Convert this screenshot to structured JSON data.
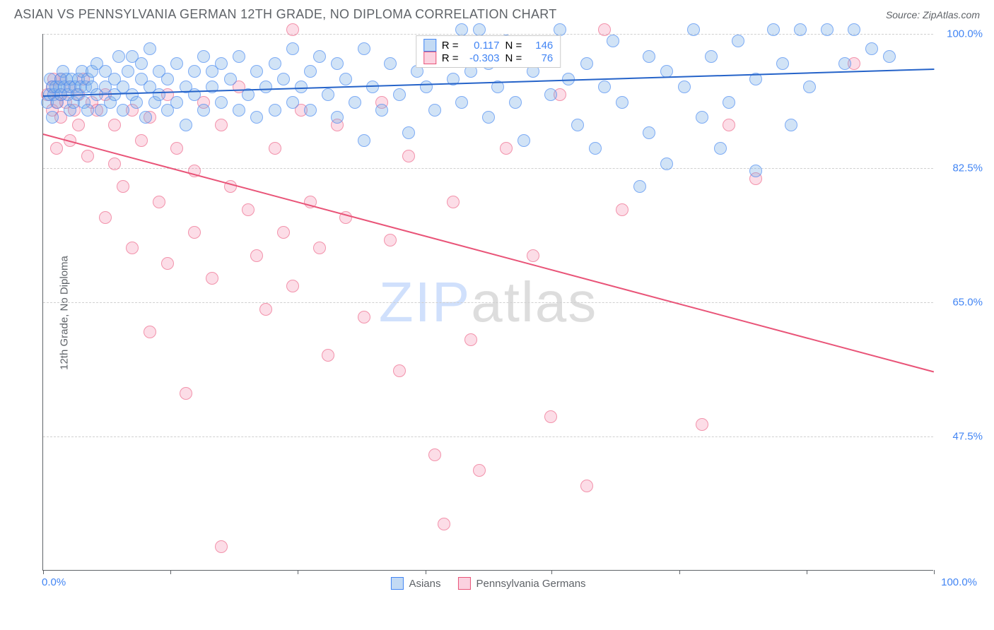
{
  "header": {
    "title": "ASIAN VS PENNSYLVANIA GERMAN 12TH GRADE, NO DIPLOMA CORRELATION CHART",
    "source": "Source: ZipAtlas.com"
  },
  "ylabel": "12th Grade, No Diploma",
  "watermark": {
    "zip": "ZIP",
    "atlas": "atlas"
  },
  "xaxis": {
    "min": 0,
    "max": 100,
    "min_label": "0.0%",
    "max_label": "100.0%",
    "ticks_pct": [
      0,
      14.3,
      28.6,
      42.9,
      57.1,
      71.4,
      85.7,
      100
    ]
  },
  "yaxis": {
    "min": 30,
    "max": 100,
    "gridlines": [
      47.5,
      65.0,
      82.5,
      100.0
    ],
    "labels": [
      "47.5%",
      "65.0%",
      "82.5%",
      "100.0%"
    ]
  },
  "legend_top": {
    "rows": [
      {
        "swatch": "a",
        "r_label": "R =",
        "r": "0.117",
        "n_label": "N =",
        "n": "146"
      },
      {
        "swatch": "b",
        "r_label": "R =",
        "r": "-0.303",
        "n_label": "N =",
        "n": "76"
      }
    ]
  },
  "legend_bottom": {
    "items": [
      {
        "swatch": "a",
        "label": "Asians"
      },
      {
        "swatch": "b",
        "label": "Pennsylvania Germans"
      }
    ]
  },
  "trend": {
    "a": {
      "color": "#2563c9",
      "y_at_x0": 92.0,
      "y_at_x100": 95.5
    },
    "b": {
      "color": "#e95478",
      "y_at_x0": 87.0,
      "y_at_x100": 56.0
    }
  },
  "series": {
    "a": {
      "color_fill": "rgba(122,174,230,0.35)",
      "color_stroke": "rgba(66,133,244,0.6)",
      "points": [
        [
          0.5,
          91
        ],
        [
          0.7,
          92
        ],
        [
          0.8,
          94
        ],
        [
          1,
          93
        ],
        [
          1,
          89
        ],
        [
          1.2,
          92
        ],
        [
          1.4,
          93
        ],
        [
          1.6,
          91
        ],
        [
          1.8,
          93
        ],
        [
          2,
          92
        ],
        [
          2,
          94
        ],
        [
          2.2,
          95
        ],
        [
          2.4,
          93
        ],
        [
          2.6,
          94
        ],
        [
          2.8,
          92
        ],
        [
          3,
          93
        ],
        [
          3,
          90
        ],
        [
          3.2,
          94
        ],
        [
          3.4,
          91
        ],
        [
          3.6,
          93
        ],
        [
          3.8,
          92
        ],
        [
          4,
          94
        ],
        [
          4.2,
          93
        ],
        [
          4.4,
          95
        ],
        [
          4.6,
          91
        ],
        [
          4.8,
          93
        ],
        [
          5,
          90
        ],
        [
          5,
          94
        ],
        [
          5.5,
          93
        ],
        [
          5.5,
          95
        ],
        [
          6,
          92
        ],
        [
          6,
          96
        ],
        [
          6.5,
          90
        ],
        [
          7,
          93
        ],
        [
          7,
          95
        ],
        [
          7.5,
          91
        ],
        [
          8,
          94
        ],
        [
          8,
          92
        ],
        [
          8.5,
          97
        ],
        [
          9,
          90
        ],
        [
          9,
          93
        ],
        [
          9.5,
          95
        ],
        [
          10,
          92
        ],
        [
          10,
          97
        ],
        [
          10.5,
          91
        ],
        [
          11,
          94
        ],
        [
          11,
          96
        ],
        [
          11.5,
          89
        ],
        [
          12,
          93
        ],
        [
          12,
          98
        ],
        [
          12.5,
          91
        ],
        [
          13,
          95
        ],
        [
          13,
          92
        ],
        [
          14,
          94
        ],
        [
          14,
          90
        ],
        [
          15,
          96
        ],
        [
          15,
          91
        ],
        [
          16,
          93
        ],
        [
          16,
          88
        ],
        [
          17,
          95
        ],
        [
          17,
          92
        ],
        [
          18,
          90
        ],
        [
          18,
          97
        ],
        [
          19,
          93
        ],
        [
          19,
          95
        ],
        [
          20,
          91
        ],
        [
          20,
          96
        ],
        [
          21,
          94
        ],
        [
          22,
          90
        ],
        [
          22,
          97
        ],
        [
          23,
          92
        ],
        [
          24,
          95
        ],
        [
          24,
          89
        ],
        [
          25,
          93
        ],
        [
          26,
          96
        ],
        [
          26,
          90
        ],
        [
          27,
          94
        ],
        [
          28,
          91
        ],
        [
          28,
          98
        ],
        [
          29,
          93
        ],
        [
          30,
          90
        ],
        [
          30,
          95
        ],
        [
          31,
          97
        ],
        [
          32,
          92
        ],
        [
          33,
          89
        ],
        [
          33,
          96
        ],
        [
          34,
          94
        ],
        [
          35,
          91
        ],
        [
          36,
          98
        ],
        [
          36,
          86
        ],
        [
          37,
          93
        ],
        [
          38,
          90
        ],
        [
          39,
          96
        ],
        [
          40,
          92
        ],
        [
          41,
          87
        ],
        [
          42,
          95
        ],
        [
          43,
          93
        ],
        [
          44,
          90
        ],
        [
          45,
          97
        ],
        [
          46,
          94
        ],
        [
          47,
          100.5
        ],
        [
          47,
          91
        ],
        [
          48,
          95
        ],
        [
          49,
          100.5
        ],
        [
          50,
          89
        ],
        [
          50,
          96
        ],
        [
          51,
          93
        ],
        [
          52,
          99
        ],
        [
          53,
          91
        ],
        [
          54,
          86
        ],
        [
          55,
          95
        ],
        [
          56,
          97
        ],
        [
          57,
          92
        ],
        [
          58,
          100.5
        ],
        [
          59,
          94
        ],
        [
          60,
          88
        ],
        [
          61,
          96
        ],
        [
          62,
          85
        ],
        [
          63,
          93
        ],
        [
          64,
          99
        ],
        [
          65,
          91
        ],
        [
          67,
          80
        ],
        [
          68,
          97
        ],
        [
          68,
          87
        ],
        [
          70,
          95
        ],
        [
          70,
          83
        ],
        [
          72,
          93
        ],
        [
          73,
          100.5
        ],
        [
          74,
          89
        ],
        [
          75,
          97
        ],
        [
          76,
          85
        ],
        [
          77,
          91
        ],
        [
          78,
          99
        ],
        [
          80,
          94
        ],
        [
          80,
          82
        ],
        [
          82,
          100.5
        ],
        [
          83,
          96
        ],
        [
          84,
          88
        ],
        [
          85,
          100.5
        ],
        [
          86,
          93
        ],
        [
          88,
          100.5
        ],
        [
          90,
          96
        ],
        [
          91,
          100.5
        ],
        [
          93,
          98
        ],
        [
          95,
          97
        ]
      ]
    },
    "b": {
      "color_fill": "rgba(244,143,177,0.3)",
      "color_stroke": "rgba(233,84,120,0.55)",
      "points": [
        [
          0.5,
          92
        ],
        [
          1,
          93
        ],
        [
          1,
          90
        ],
        [
          1.2,
          94
        ],
        [
          1.5,
          91
        ],
        [
          1.5,
          85
        ],
        [
          2,
          92
        ],
        [
          2,
          89
        ],
        [
          2,
          94
        ],
        [
          2.5,
          91
        ],
        [
          3,
          93
        ],
        [
          3,
          86
        ],
        [
          3.5,
          90
        ],
        [
          4,
          92
        ],
        [
          4,
          88
        ],
        [
          4.5,
          94
        ],
        [
          5,
          84
        ],
        [
          5.5,
          91
        ],
        [
          6,
          90
        ],
        [
          7,
          76
        ],
        [
          7,
          92
        ],
        [
          8,
          88
        ],
        [
          8,
          83
        ],
        [
          9,
          80
        ],
        [
          10,
          90
        ],
        [
          10,
          72
        ],
        [
          11,
          86
        ],
        [
          12,
          61
        ],
        [
          12,
          89
        ],
        [
          13,
          78
        ],
        [
          14,
          92
        ],
        [
          14,
          70
        ],
        [
          15,
          85
        ],
        [
          16,
          53
        ],
        [
          17,
          82
        ],
        [
          17,
          74
        ],
        [
          18,
          91
        ],
        [
          19,
          68
        ],
        [
          20,
          88
        ],
        [
          20,
          33
        ],
        [
          21,
          80
        ],
        [
          22,
          93
        ],
        [
          23,
          77
        ],
        [
          24,
          71
        ],
        [
          25,
          64
        ],
        [
          26,
          85
        ],
        [
          27,
          74
        ],
        [
          28,
          100.5
        ],
        [
          28,
          67
        ],
        [
          29,
          90
        ],
        [
          30,
          78
        ],
        [
          31,
          72
        ],
        [
          32,
          58
        ],
        [
          33,
          88
        ],
        [
          34,
          76
        ],
        [
          36,
          63
        ],
        [
          38,
          91
        ],
        [
          39,
          73
        ],
        [
          40,
          56
        ],
        [
          41,
          84
        ],
        [
          44,
          45
        ],
        [
          45,
          36
        ],
        [
          46,
          78
        ],
        [
          48,
          60
        ],
        [
          49,
          43
        ],
        [
          52,
          85
        ],
        [
          55,
          71
        ],
        [
          57,
          50
        ],
        [
          58,
          92
        ],
        [
          61,
          41
        ],
        [
          63,
          100.5
        ],
        [
          65,
          77
        ],
        [
          74,
          49
        ],
        [
          77,
          88
        ],
        [
          80,
          81
        ],
        [
          91,
          96
        ]
      ]
    }
  }
}
